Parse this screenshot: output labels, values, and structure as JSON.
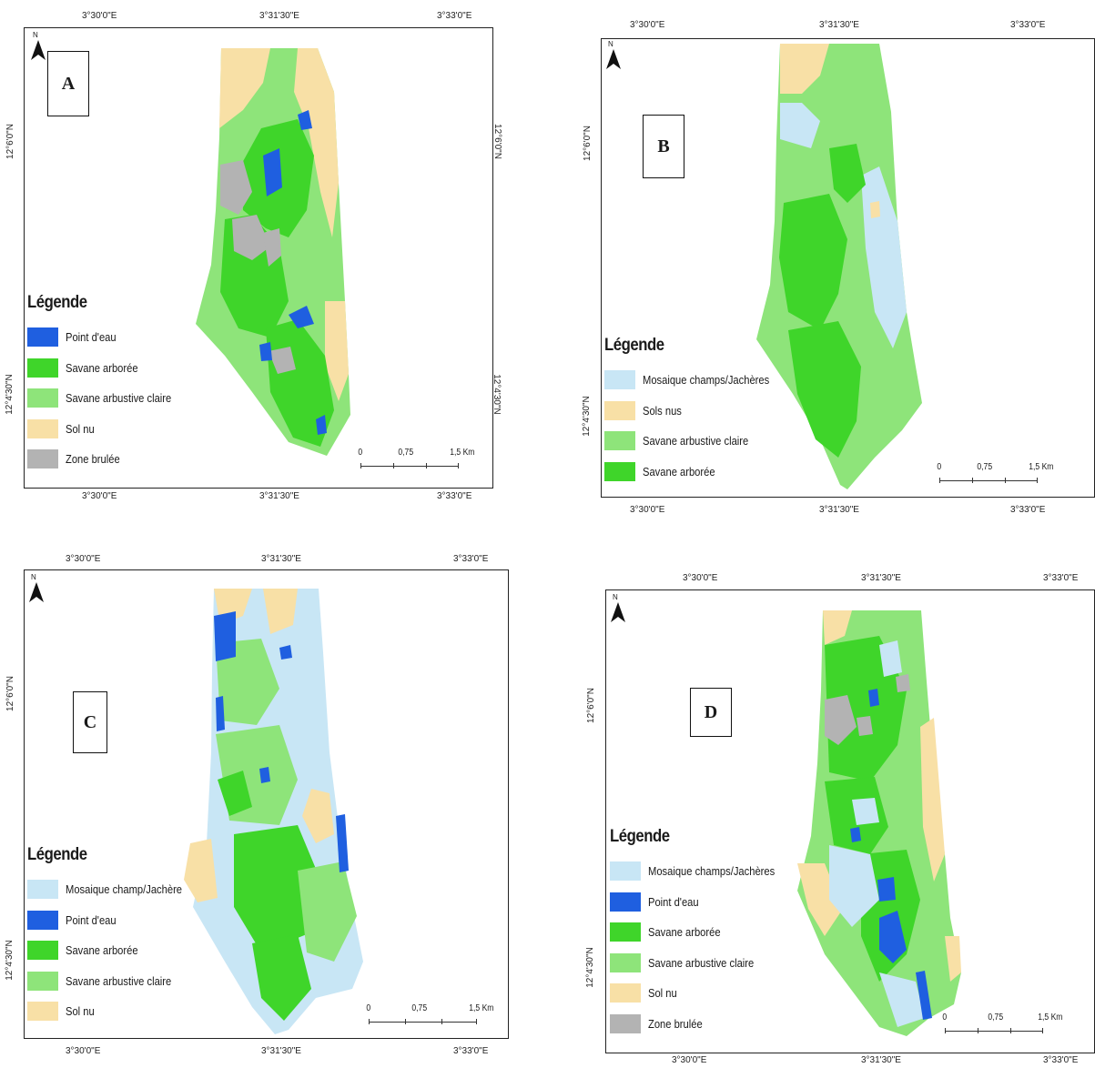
{
  "colors": {
    "point_eau": "#1f5fe0",
    "savane_arboree": "#3fd52a",
    "savane_arbustive": "#8ee47a",
    "sol_nu": "#f8e0a6",
    "zone_brulee": "#b3b3b3",
    "mosaique": "#c8e6f5"
  },
  "north_label": "N",
  "legend_title": "Légende",
  "scale": {
    "zero": "0",
    "mid": "0,75",
    "end": "1,5 Km"
  },
  "ticks": {
    "lon": [
      "3°30'0\"E",
      "3°31'30\"E",
      "3°33'0\"E"
    ],
    "lat": [
      "12°6'0\"N",
      "12°4'30\"N"
    ]
  },
  "panels": [
    {
      "letter": "A",
      "legend": [
        {
          "label": "Point d'eau",
          "color": "#1f5fe0"
        },
        {
          "label": "Savane arborée",
          "color": "#3fd52a"
        },
        {
          "label": "Savane arbustive claire",
          "color": "#8ee47a"
        },
        {
          "label": "Sol nu",
          "color": "#f8e0a6"
        },
        {
          "label": "Zone brulée",
          "color": "#b3b3b3"
        }
      ]
    },
    {
      "letter": "B",
      "legend": [
        {
          "label": "Mosaique champs/Jachères",
          "color": "#c8e6f5"
        },
        {
          "label": "Sols nus",
          "color": "#f8e0a6"
        },
        {
          "label": "Savane arbustive claire",
          "color": "#8ee47a"
        },
        {
          "label": "Savane arborée",
          "color": "#3fd52a"
        }
      ]
    },
    {
      "letter": "C",
      "legend": [
        {
          "label": "Mosaique champ/Jachère",
          "color": "#c8e6f5"
        },
        {
          "label": "Point d'eau",
          "color": "#1f5fe0"
        },
        {
          "label": "Savane arborée",
          "color": "#3fd52a"
        },
        {
          "label": "Savane arbustive claire",
          "color": "#8ee47a"
        },
        {
          "label": "Sol nu",
          "color": "#f8e0a6"
        }
      ]
    },
    {
      "letter": "D",
      "legend": [
        {
          "label": "Mosaique champs/Jachères",
          "color": "#c8e6f5"
        },
        {
          "label": "Point d'eau",
          "color": "#1f5fe0"
        },
        {
          "label": "Savane arborée",
          "color": "#3fd52a"
        },
        {
          "label": "Savane arbustive claire",
          "color": "#8ee47a"
        },
        {
          "label": "Sol nu",
          "color": "#f8e0a6"
        },
        {
          "label": "Zone brulée",
          "color": "#b3b3b3"
        }
      ]
    }
  ]
}
